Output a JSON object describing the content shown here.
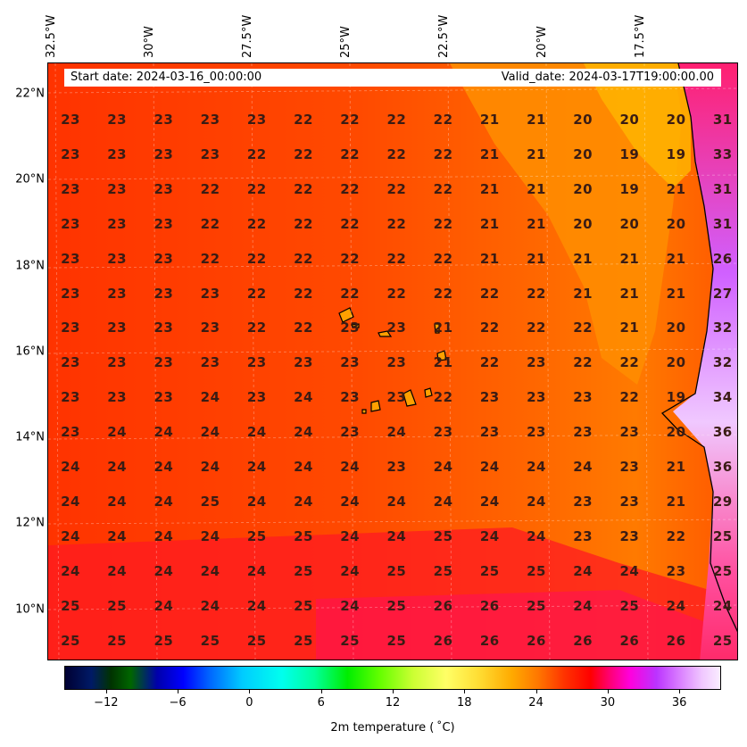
{
  "header": {
    "start_date": "Start date: 2024-03-16_00:00:00",
    "valid_date": "Valid_date: 2024-03-17T19:00:00.00"
  },
  "lon_labels": [
    "32.5°W",
    "30°W",
    "27.5°W",
    "25°W",
    "22.5°W",
    "20°W",
    "17.5°W"
  ],
  "lat_labels": [
    "22°N",
    "20°N",
    "18°N",
    "16°N",
    "14°N",
    "12°N",
    "10°N"
  ],
  "grid_values": [
    [
      "23",
      "23",
      "23",
      "23",
      "23",
      "22",
      "22",
      "22",
      "22",
      "21",
      "21",
      "20",
      "20",
      "20",
      "31"
    ],
    [
      "23",
      "23",
      "23",
      "23",
      "22",
      "22",
      "22",
      "22",
      "22",
      "21",
      "21",
      "20",
      "19",
      "19",
      "33"
    ],
    [
      "23",
      "23",
      "23",
      "22",
      "22",
      "22",
      "22",
      "22",
      "22",
      "21",
      "21",
      "20",
      "19",
      "21",
      "31"
    ],
    [
      "23",
      "23",
      "23",
      "22",
      "22",
      "22",
      "22",
      "22",
      "22",
      "21",
      "21",
      "20",
      "20",
      "20",
      "31"
    ],
    [
      "23",
      "23",
      "23",
      "22",
      "22",
      "22",
      "22",
      "22",
      "22",
      "21",
      "21",
      "21",
      "21",
      "21",
      "26"
    ],
    [
      "23",
      "23",
      "23",
      "23",
      "22",
      "22",
      "22",
      "22",
      "22",
      "22",
      "22",
      "21",
      "21",
      "21",
      "27"
    ],
    [
      "23",
      "23",
      "23",
      "23",
      "22",
      "22",
      "23",
      "23",
      "21",
      "22",
      "22",
      "22",
      "21",
      "20",
      "32"
    ],
    [
      "23",
      "23",
      "23",
      "23",
      "23",
      "23",
      "23",
      "23",
      "21",
      "22",
      "23",
      "22",
      "22",
      "20",
      "32"
    ],
    [
      "23",
      "23",
      "23",
      "24",
      "23",
      "24",
      "23",
      "23",
      "22",
      "23",
      "23",
      "23",
      "22",
      "19",
      "34"
    ],
    [
      "23",
      "24",
      "24",
      "24",
      "24",
      "24",
      "23",
      "24",
      "23",
      "23",
      "23",
      "23",
      "23",
      "20",
      "36"
    ],
    [
      "24",
      "24",
      "24",
      "24",
      "24",
      "24",
      "24",
      "23",
      "24",
      "24",
      "24",
      "24",
      "23",
      "21",
      "36"
    ],
    [
      "24",
      "24",
      "24",
      "25",
      "24",
      "24",
      "24",
      "24",
      "24",
      "24",
      "24",
      "23",
      "23",
      "21",
      "29"
    ],
    [
      "24",
      "24",
      "24",
      "24",
      "25",
      "25",
      "24",
      "24",
      "25",
      "24",
      "24",
      "23",
      "23",
      "22",
      "25"
    ],
    [
      "24",
      "24",
      "24",
      "24",
      "24",
      "25",
      "24",
      "25",
      "25",
      "25",
      "25",
      "24",
      "24",
      "23",
      "25"
    ],
    [
      "25",
      "25",
      "24",
      "24",
      "24",
      "25",
      "24",
      "25",
      "26",
      "26",
      "25",
      "24",
      "25",
      "24",
      "24"
    ],
    [
      "25",
      "25",
      "25",
      "25",
      "25",
      "25",
      "25",
      "25",
      "26",
      "26",
      "26",
      "26",
      "26",
      "26",
      "25"
    ]
  ],
  "colorbar": {
    "title": "2m temperature ( ˚C)",
    "ticks": [
      "−12",
      "−6",
      "0",
      "6",
      "12",
      "18",
      "24",
      "30",
      "36"
    ]
  },
  "colors": {
    "background_field": "#ff2a00",
    "warm_field": "#ff6a00",
    "cool_field": "#ffaa00",
    "hot_land": "#c040ff"
  }
}
